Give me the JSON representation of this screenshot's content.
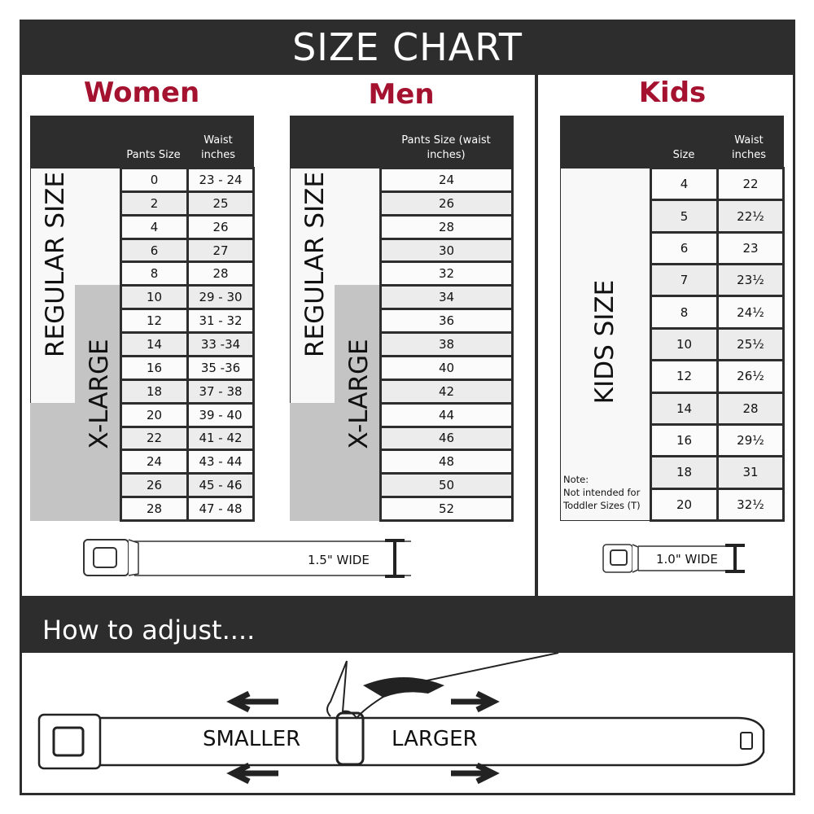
{
  "header": {
    "title": "SIZE CHART"
  },
  "women": {
    "title": "Women",
    "col_size": "Pants Size",
    "col_waist": "Waist inches",
    "regular_label": "REGULAR SIZE",
    "xlarge_label": "X-LARGE",
    "rows": [
      [
        "0",
        "23 - 24"
      ],
      [
        "2",
        "25"
      ],
      [
        "4",
        "26"
      ],
      [
        "6",
        "27"
      ],
      [
        "8",
        "28"
      ],
      [
        "10",
        "29 - 30"
      ],
      [
        "12",
        "31 - 32"
      ],
      [
        "14",
        "33 -34"
      ],
      [
        "16",
        "35 -36"
      ],
      [
        "18",
        "37 - 38"
      ],
      [
        "20",
        "39 - 40"
      ],
      [
        "22",
        "41 - 42"
      ],
      [
        "24",
        "43 - 44"
      ],
      [
        "26",
        "45 - 46"
      ],
      [
        "28",
        "47 - 48"
      ]
    ],
    "belt_width": "1.5\" WIDE"
  },
  "men": {
    "title": "Men",
    "col_size": "Pants Size (waist inches)",
    "regular_label": "REGULAR SIZE",
    "xlarge_label": "X-LARGE",
    "rows": [
      "24",
      "26",
      "28",
      "30",
      "32",
      "34",
      "36",
      "38",
      "40",
      "42",
      "44",
      "46",
      "48",
      "50",
      "52"
    ]
  },
  "kids": {
    "title": "Kids",
    "col_size": "Size",
    "col_waist": "Waist inches",
    "side_label": "KIDS SIZE",
    "note_title": "Note:",
    "note_line1": "Not intended for",
    "note_line2": "Toddler Sizes (T)",
    "rows": [
      [
        "4",
        "22"
      ],
      [
        "5",
        "22½"
      ],
      [
        "6",
        "23"
      ],
      [
        "7",
        "23½"
      ],
      [
        "8",
        "24½"
      ],
      [
        "10",
        "25½"
      ],
      [
        "12",
        "26½"
      ],
      [
        "14",
        "28"
      ],
      [
        "16",
        "29½"
      ],
      [
        "18",
        "31"
      ],
      [
        "20",
        "32½"
      ]
    ],
    "belt_width": "1.0\" WIDE"
  },
  "adjust": {
    "title": "How to adjust....",
    "smaller": "SMALLER",
    "larger": "LARGER"
  },
  "colors": {
    "dark": "#2d2d2d",
    "accent": "#a4122f",
    "xlarge_grey": "#c4c4c4"
  }
}
